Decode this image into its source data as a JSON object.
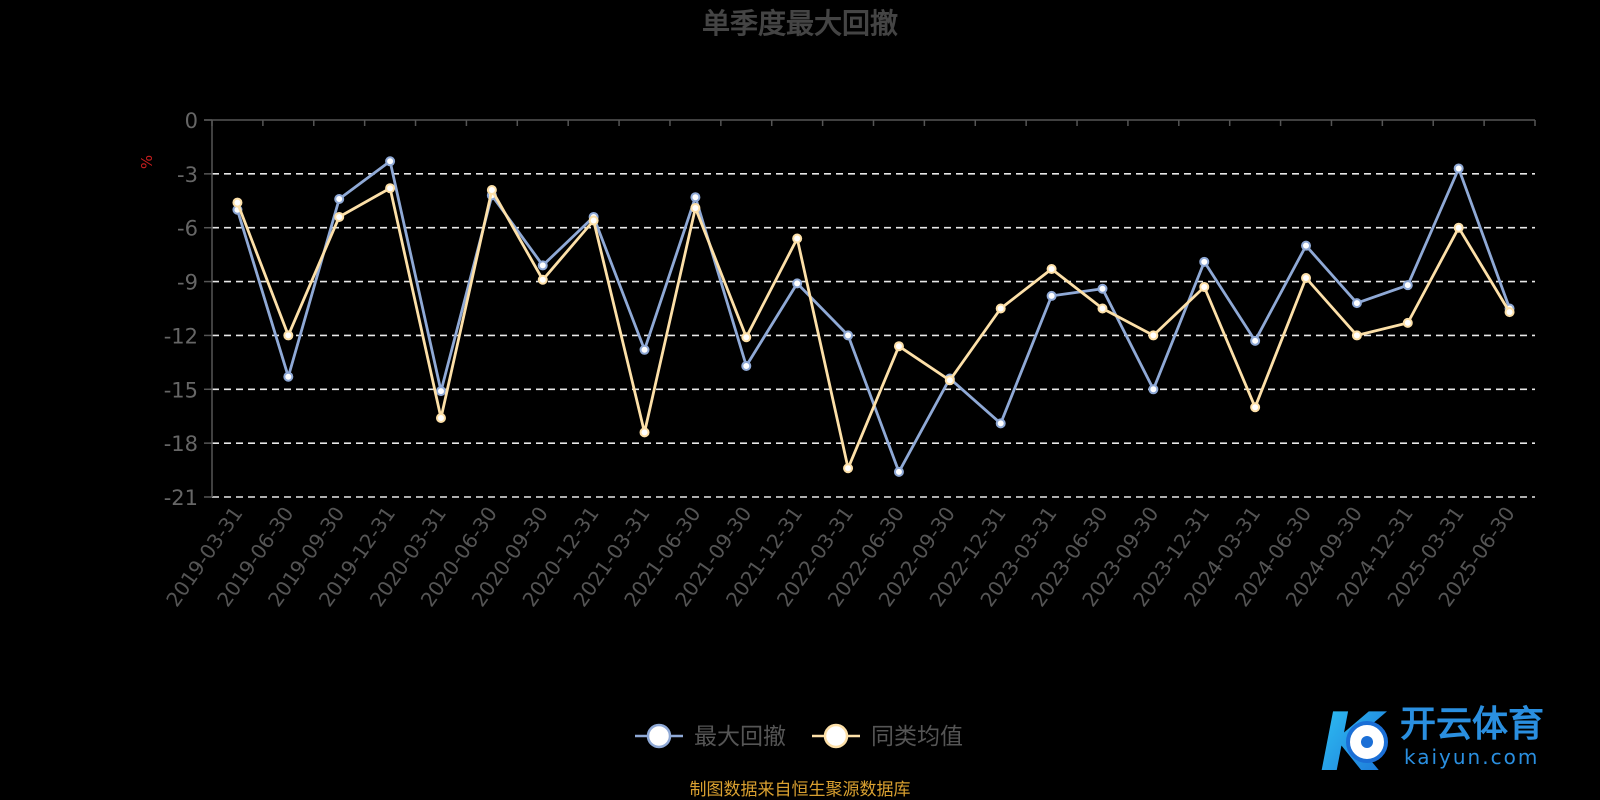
{
  "chart_data": {
    "type": "line",
    "title": "单季度最大回撤",
    "ylabel": "%",
    "ylim": [
      -21,
      0
    ],
    "yticks": [
      0,
      -3,
      -6,
      -9,
      -12,
      -15,
      -18,
      -21
    ],
    "grid": "horizontal dashed",
    "legend_position": "bottom-center",
    "categories": [
      "2019-03-31",
      "2019-06-30",
      "2019-09-30",
      "2019-12-31",
      "2020-03-31",
      "2020-06-30",
      "2020-09-30",
      "2020-12-31",
      "2021-03-31",
      "2021-06-30",
      "2021-09-30",
      "2021-12-31",
      "2022-03-31",
      "2022-06-30",
      "2022-09-30",
      "2022-12-31",
      "2023-03-31",
      "2023-06-30",
      "2023-09-30",
      "2023-12-31",
      "2024-03-31",
      "2024-06-30",
      "2024-09-30",
      "2024-12-31",
      "2025-03-31",
      "2025-06-30"
    ],
    "series": [
      {
        "name": "最大回撤",
        "color": "#8fa9d6",
        "values": [
          -5.0,
          -14.3,
          -4.4,
          -2.3,
          -15.1,
          -4.2,
          -8.1,
          -5.4,
          -12.8,
          -4.3,
          -13.7,
          -9.1,
          -12.0,
          -19.6,
          -14.4,
          -16.9,
          -9.8,
          -9.4,
          -15.0,
          -7.9,
          -12.3,
          -7.0,
          -10.2,
          -9.2,
          -2.7,
          -10.5
        ]
      },
      {
        "name": "同类均值",
        "color": "#fde0a8",
        "values": [
          -4.6,
          -12.0,
          -5.4,
          -3.8,
          -16.6,
          -3.9,
          -8.9,
          -5.6,
          -17.4,
          -4.9,
          -12.1,
          -6.6,
          -19.4,
          -12.6,
          -14.5,
          -10.5,
          -8.3,
          -10.5,
          -12.0,
          -9.3,
          -16.0,
          -8.8,
          -12.0,
          -11.3,
          -6.0,
          -10.7
        ]
      }
    ]
  },
  "source_note": "制图数据来自恒生聚源数据库",
  "watermark": {
    "name_cn": "开云体育",
    "domain": "kaiyun.com",
    "letter": "K"
  }
}
